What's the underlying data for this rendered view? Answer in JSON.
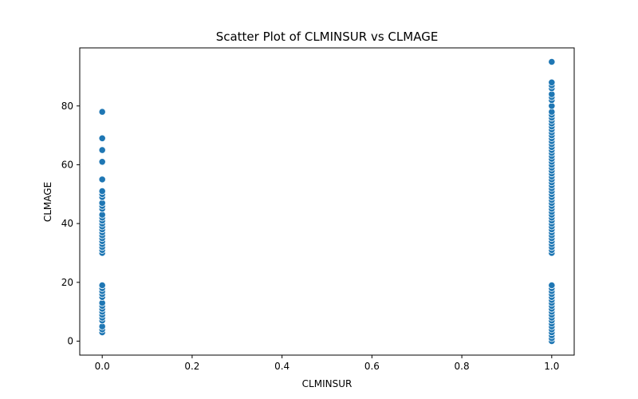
{
  "chart_data": {
    "type": "scatter",
    "title": "Scatter Plot of CLMINSUR vs CLMAGE",
    "xlabel": "CLMINSUR",
    "ylabel": "CLMAGE",
    "xlim": [
      -0.05,
      1.05
    ],
    "ylim": [
      -4.75,
      99.75
    ],
    "xticks": [
      0.0,
      0.2,
      0.4,
      0.6,
      0.8,
      1.0
    ],
    "xtick_labels": [
      "0.0",
      "0.2",
      "0.4",
      "0.6",
      "0.8",
      "1.0"
    ],
    "yticks": [
      0,
      20,
      40,
      60,
      80
    ],
    "ytick_labels": [
      "0",
      "20",
      "40",
      "60",
      "80"
    ],
    "grid": false,
    "marker_color": "#1f77b4",
    "series": [
      {
        "x": 0,
        "y": [
          3,
          4,
          5,
          7,
          8,
          9,
          10,
          11,
          12,
          13,
          15,
          16,
          17,
          18,
          19,
          30,
          31,
          32,
          33,
          34,
          35,
          36,
          37,
          38,
          39,
          40,
          41,
          42,
          43,
          45,
          46,
          47,
          49,
          50,
          51,
          55,
          61,
          65,
          69,
          78
        ]
      },
      {
        "x": 1,
        "y": [
          0,
          1,
          2,
          3,
          4,
          5,
          6,
          7,
          8,
          9,
          10,
          11,
          12,
          13,
          14,
          15,
          16,
          17,
          18,
          19,
          30,
          31,
          32,
          33,
          34,
          35,
          36,
          37,
          38,
          39,
          40,
          41,
          42,
          43,
          44,
          45,
          46,
          47,
          48,
          49,
          50,
          51,
          52,
          53,
          54,
          55,
          56,
          57,
          58,
          59,
          60,
          61,
          62,
          63,
          64,
          65,
          66,
          67,
          68,
          69,
          70,
          71,
          72,
          73,
          74,
          75,
          76,
          77,
          78,
          80,
          82,
          83,
          84,
          86,
          87,
          88,
          95
        ]
      }
    ]
  }
}
